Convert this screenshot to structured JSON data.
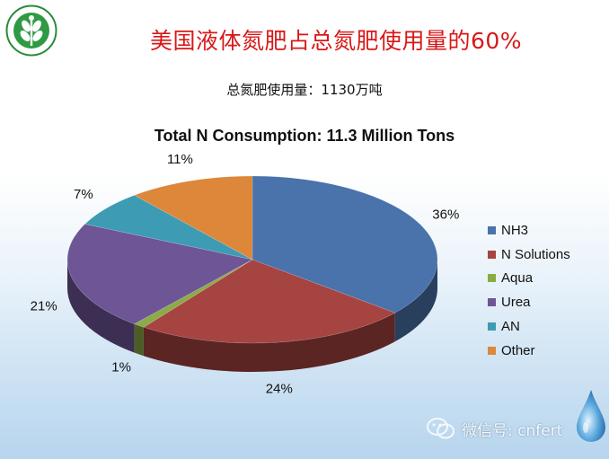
{
  "header": {
    "title": "美国液体氮肥占总氮肥使用量的60%",
    "subtitle": "总氮肥使用量：1130万吨"
  },
  "chart_data": {
    "type": "pie",
    "title": "Total N Consumption: 11.3 Million Tons",
    "categories": [
      "NH3",
      "N Solutions",
      "Aqua",
      "Urea",
      "AN",
      "Other"
    ],
    "values": [
      36,
      24,
      1,
      21,
      7,
      11
    ],
    "labels": [
      "36%",
      "24%",
      "1%",
      "21%",
      "7%",
      "11%"
    ],
    "colors": [
      "#4a72ab",
      "#a64441",
      "#8aab45",
      "#6e5596",
      "#3d9bb3",
      "#dc8739"
    ],
    "legend_position": "right",
    "style": "3d"
  },
  "watermark": {
    "text": "微信号: cnfert"
  }
}
